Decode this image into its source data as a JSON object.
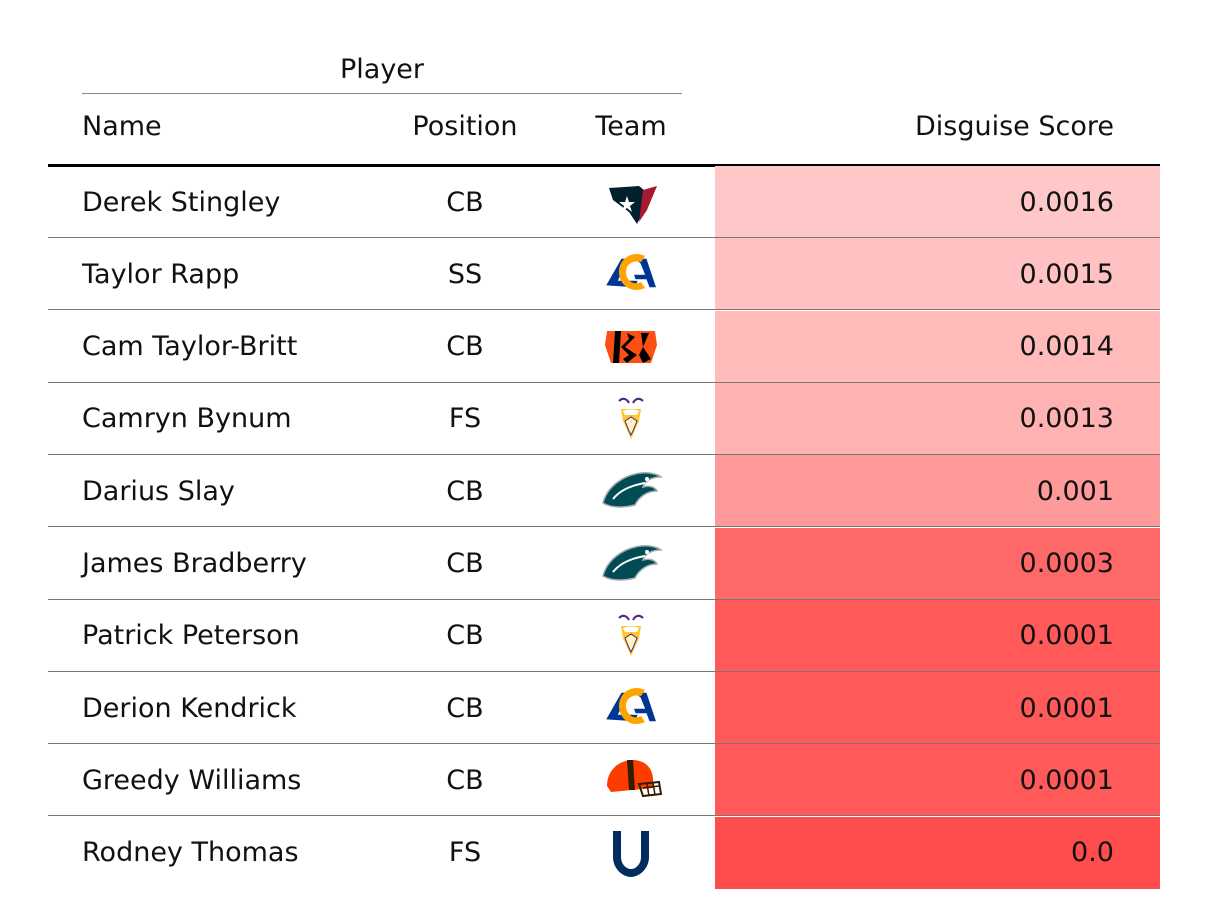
{
  "table": {
    "group_header": "Player",
    "columns": {
      "name": "Name",
      "position": "Position",
      "team": "Team",
      "score": "Disguise Score"
    }
  },
  "chart_data": {
    "type": "table",
    "columns": [
      "Name",
      "Position",
      "Team",
      "Disguise Score"
    ],
    "rows": [
      {
        "name": "Derek Stingley",
        "position": "CB",
        "team_icon": "texans-logo-icon",
        "score": "0.0016",
        "value": 0.0016,
        "color": "#ffc8c8"
      },
      {
        "name": "Taylor Rapp",
        "position": "SS",
        "team_icon": "rams-logo-icon",
        "score": "0.0015",
        "value": 0.0015,
        "color": "#ffc1c1"
      },
      {
        "name": "Cam Taylor-Britt",
        "position": "CB",
        "team_icon": "bengals-logo-icon",
        "score": "0.0014",
        "value": 0.0014,
        "color": "#ffbaba"
      },
      {
        "name": "Camryn Bynum",
        "position": "FS",
        "team_icon": "vikings-logo-icon",
        "score": "0.0013",
        "value": 0.0013,
        "color": "#ffb2b2"
      },
      {
        "name": "Darius Slay",
        "position": "CB",
        "team_icon": "eagles-logo-icon",
        "score": "0.001",
        "value": 0.001,
        "color": "#ff9a9a"
      },
      {
        "name": "James Bradberry",
        "position": "CB",
        "team_icon": "eagles-logo-icon",
        "score": "0.0003",
        "value": 0.0003,
        "color": "#ff6868"
      },
      {
        "name": "Patrick Peterson",
        "position": "CB",
        "team_icon": "vikings-logo-icon",
        "score": "0.0001",
        "value": 0.0001,
        "color": "#ff5959"
      },
      {
        "name": "Derion Kendrick",
        "position": "CB",
        "team_icon": "rams-logo-icon",
        "score": "0.0001",
        "value": 0.0001,
        "color": "#ff5959"
      },
      {
        "name": "Greedy Williams",
        "position": "CB",
        "team_icon": "browns-logo-icon",
        "score": "0.0001",
        "value": 0.0001,
        "color": "#ff5959"
      },
      {
        "name": "Rodney Thomas",
        "position": "FS",
        "team_icon": "colts-logo-icon",
        "score": "0.0",
        "value": 0.0,
        "color": "#ff4d4d"
      }
    ]
  }
}
